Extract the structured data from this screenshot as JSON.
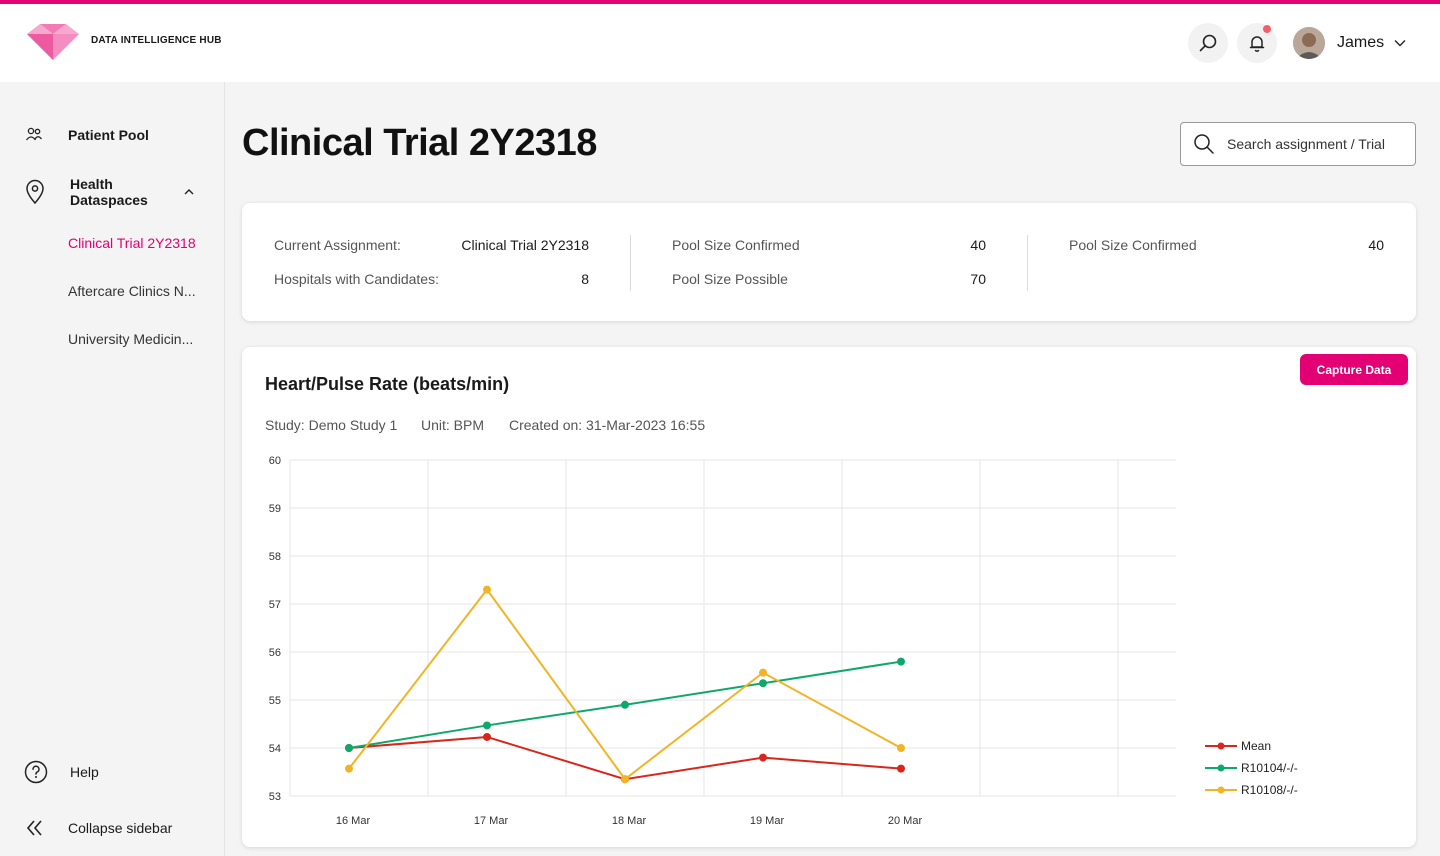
{
  "app": {
    "brand": "DATA INTELLIGENCE HUB",
    "accent_color": "#e20074"
  },
  "header": {
    "search_icon": "search-icon",
    "bell_icon": "bell-icon",
    "has_notification": true,
    "user_name": "James"
  },
  "sidebar": {
    "items": [
      {
        "label": "Patient Pool",
        "icon": "people-icon"
      },
      {
        "label": "Health Dataspaces",
        "icon": "location-pin-icon",
        "expanded": true
      }
    ],
    "sub_items": [
      {
        "label": "Clinical Trial 2Y2318",
        "active": true
      },
      {
        "label": "Aftercare Clinics N...",
        "active": false
      },
      {
        "label": "University Medicin...",
        "active": false
      }
    ],
    "help_label": "Help",
    "collapse_label": "Collapse sidebar"
  },
  "page": {
    "title": "Clinical Trial 2Y2318",
    "search_placeholder": "Search assignment / Trial"
  },
  "summary": {
    "current_assignment_label": "Current Assignment:",
    "current_assignment_value": "Clinical Trial 2Y2318",
    "hospitals_label": "Hospitals with Candidates:",
    "hospitals_value": "8",
    "pool_confirmed_label": "Pool Size Confirmed",
    "pool_confirmed_value": "40",
    "pool_possible_label": "Pool Size Possible",
    "pool_possible_value": "70",
    "pool_confirmed_label_2": "Pool Size Confirmed",
    "pool_confirmed_value_2": "40"
  },
  "chart_card": {
    "title": "Heart/Pulse Rate (beats/min)",
    "capture_label": "Capture Data",
    "study": "Study: Demo Study 1",
    "unit": "Unit: BPM",
    "created": "Created on: 31-Mar-2023 16:55"
  },
  "chart_data": {
    "type": "line",
    "title": "Heart/Pulse Rate (beats/min)",
    "categories": [
      "16 Mar",
      "17 Mar",
      "18 Mar",
      "19 Mar",
      "20 Mar"
    ],
    "ylim": [
      53,
      60
    ],
    "yticks": [
      53,
      54,
      55,
      56,
      57,
      58,
      59,
      60
    ],
    "grid": true,
    "legend_position": "bottom-right",
    "series": [
      {
        "name": "Mean",
        "color": "#d9261c",
        "values": [
          54.0,
          54.23,
          53.35,
          53.8,
          53.57
        ]
      },
      {
        "name": "R10104/-/-",
        "color": "#0fa86a",
        "values": [
          54.0,
          54.47,
          54.9,
          55.35,
          55.8
        ]
      },
      {
        "name": "R10108/-/-",
        "color": "#f0b527",
        "values": [
          53.57,
          57.3,
          53.35,
          55.57,
          54.0
        ]
      }
    ]
  }
}
